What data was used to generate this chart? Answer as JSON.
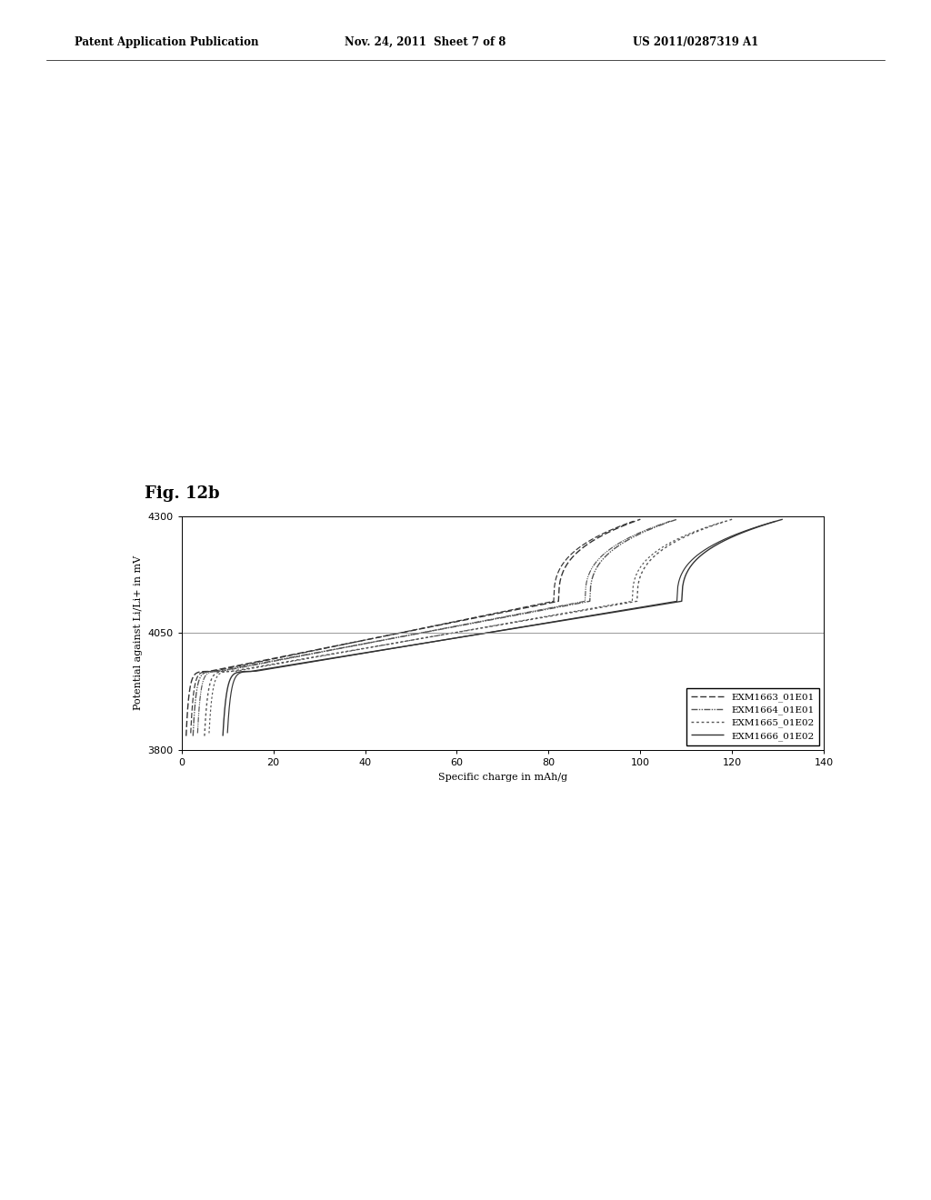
{
  "fig_label": "Fig. 12b",
  "header_left": "Patent Application Publication",
  "header_mid": "Nov. 24, 2011  Sheet 7 of 8",
  "header_right": "US 2011/0287319 A1",
  "xlabel": "Specific charge in mAh/g",
  "ylabel": "Potential against Li/Li+ in mV",
  "ylim": [
    3800,
    4300
  ],
  "xlim": [
    0,
    140
  ],
  "yticks": [
    3800,
    4050,
    4300
  ],
  "xticks": [
    0,
    20,
    40,
    60,
    80,
    100,
    120,
    140
  ],
  "grid_y": 4050,
  "background_color": "#ffffff",
  "series": [
    {
      "label": "EXM1663_01E01",
      "ls_code": "dashed",
      "color": "#333333",
      "lw": 1.0,
      "x_max": 100,
      "x_off": 1.0
    },
    {
      "label": "EXM1664_01E01",
      "ls_code": "dashdot",
      "color": "#555555",
      "lw": 1.0,
      "x_max": 108,
      "x_off": 2.5
    },
    {
      "label": "EXM1665_01E02",
      "ls_code": "dotted",
      "color": "#555555",
      "lw": 1.0,
      "x_max": 120,
      "x_off": 5.0
    },
    {
      "label": "EXM1666_01E02",
      "ls_code": "solid",
      "color": "#333333",
      "lw": 1.0,
      "x_max": 131,
      "x_off": 9.0
    }
  ]
}
